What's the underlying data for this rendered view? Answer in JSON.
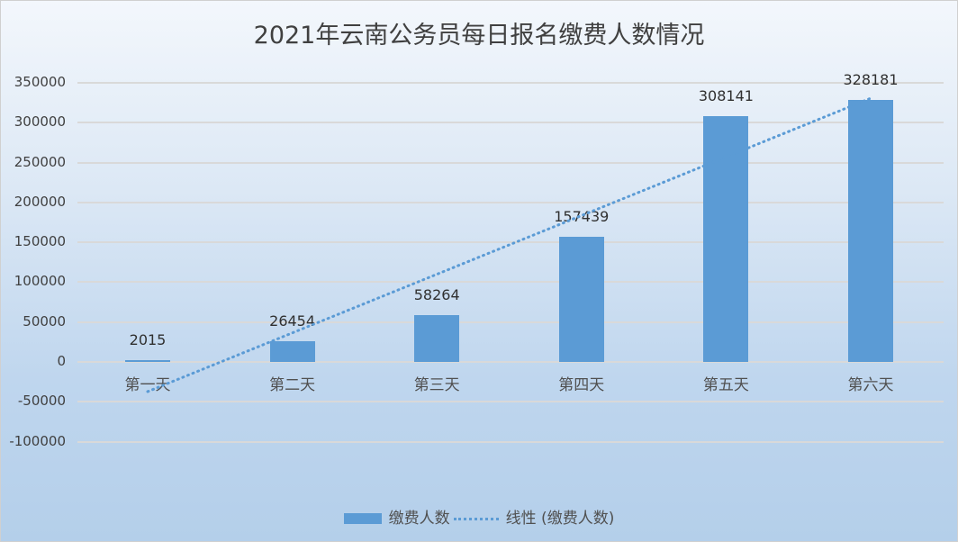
{
  "chart_data": {
    "type": "bar",
    "title": "2021年云南公务员每日报名缴费人数情况",
    "categories": [
      "第一天",
      "第二天",
      "第三天",
      "第四天",
      "第五天",
      "第六天"
    ],
    "series": [
      {
        "name": "缴费人数",
        "values": [
          2015,
          26454,
          58264,
          157439,
          308141,
          328181
        ],
        "color": "#5b9bd5"
      }
    ],
    "trendline": {
      "name": "线性 (缴费人数)",
      "type": "linear",
      "style": "dotted",
      "color": "#5b9bd5"
    },
    "xlabel": "",
    "ylabel": "",
    "ylim": [
      -100000,
      350000
    ],
    "yticks": [
      "350000",
      "300000",
      "250000",
      "200000",
      "150000",
      "100000",
      "50000",
      "0",
      "-50000",
      "-100000"
    ],
    "grid": true,
    "legend_position": "bottom",
    "data_labels": [
      "2015",
      "26454",
      "58264",
      "157439",
      "308141",
      "328181"
    ]
  }
}
